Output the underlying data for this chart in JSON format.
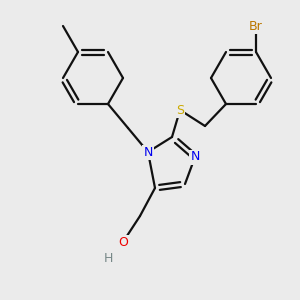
{
  "background_color": "#ebebeb",
  "atom_colors": {
    "N": "#0000ee",
    "O": "#ee0000",
    "S": "#ccaa00",
    "Br": "#bb7700",
    "H": "#778888"
  },
  "figsize": [
    3.0,
    3.0
  ],
  "dpi": 100,
  "bond_lw": 1.6,
  "bond_color": "#111111",
  "font_size": 9
}
